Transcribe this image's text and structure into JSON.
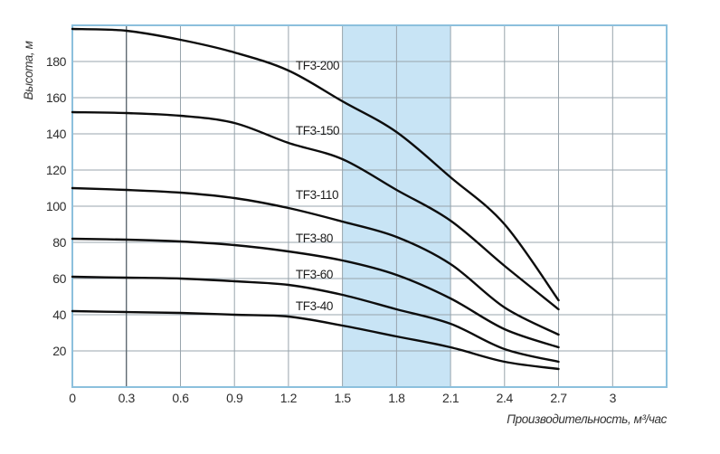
{
  "chart_data": {
    "type": "line",
    "title": "",
    "xlabel": "Производительность, м³/час",
    "ylabel": "Высота, м",
    "x": [
      0,
      0.3,
      0.6,
      0.9,
      1.2,
      1.5,
      1.8,
      2.1,
      2.4,
      2.7
    ],
    "xlim": [
      0,
      3.3
    ],
    "ylim": [
      0,
      200
    ],
    "x_tick_values": [
      0,
      0.3,
      0.6,
      0.9,
      1.2,
      1.5,
      1.8,
      2.1,
      2.4,
      2.7,
      3
    ],
    "x_tick_labels": [
      "0",
      "0.3",
      "0.6",
      "0.9",
      "1.2",
      "1.5",
      "1.8",
      "2.1",
      "2.4",
      "2.7",
      "3"
    ],
    "y_ticks": [
      20,
      40,
      60,
      80,
      100,
      120,
      140,
      160,
      180
    ],
    "grid": true,
    "legend_position": "inline-curve-labels",
    "highlight_band": {
      "x_from": 1.5,
      "x_to": 2.1
    },
    "reference_line_x": 0.3,
    "curve_label_x": 1.24,
    "series": [
      {
        "name": "TF3-200",
        "values": [
          198,
          197,
          192,
          185,
          175,
          158,
          141,
          116,
          90,
          48
        ],
        "label_y": 178
      },
      {
        "name": "TF3-150",
        "values": [
          152,
          151.5,
          150,
          146,
          135,
          126,
          109,
          92,
          67,
          43
        ],
        "label_y": 142
      },
      {
        "name": "TF3-110",
        "values": [
          110,
          109,
          107.5,
          104.5,
          99,
          91.5,
          83,
          68,
          44,
          29
        ],
        "label_y": 106.5
      },
      {
        "name": "TF3-80",
        "values": [
          82,
          81.5,
          80.5,
          78.5,
          75,
          70,
          62,
          49,
          32,
          22
        ],
        "label_y": 82.5
      },
      {
        "name": "TF3-60",
        "values": [
          61,
          60.5,
          60,
          58.5,
          56.5,
          51,
          43,
          35,
          21,
          14
        ],
        "label_y": 62.5
      },
      {
        "name": "TF3-40",
        "values": [
          42,
          41.5,
          41,
          40,
          39,
          34,
          28,
          22,
          14,
          10
        ],
        "label_y": 45
      }
    ],
    "colors": {
      "curve": "#0d0d0d",
      "grid": "#98a4ac",
      "reference_line": "#5f6a72",
      "border": "#8cc0dd",
      "band": "#c8e4f5",
      "text": "#2e2e2e",
      "background": "#ffffff"
    }
  }
}
